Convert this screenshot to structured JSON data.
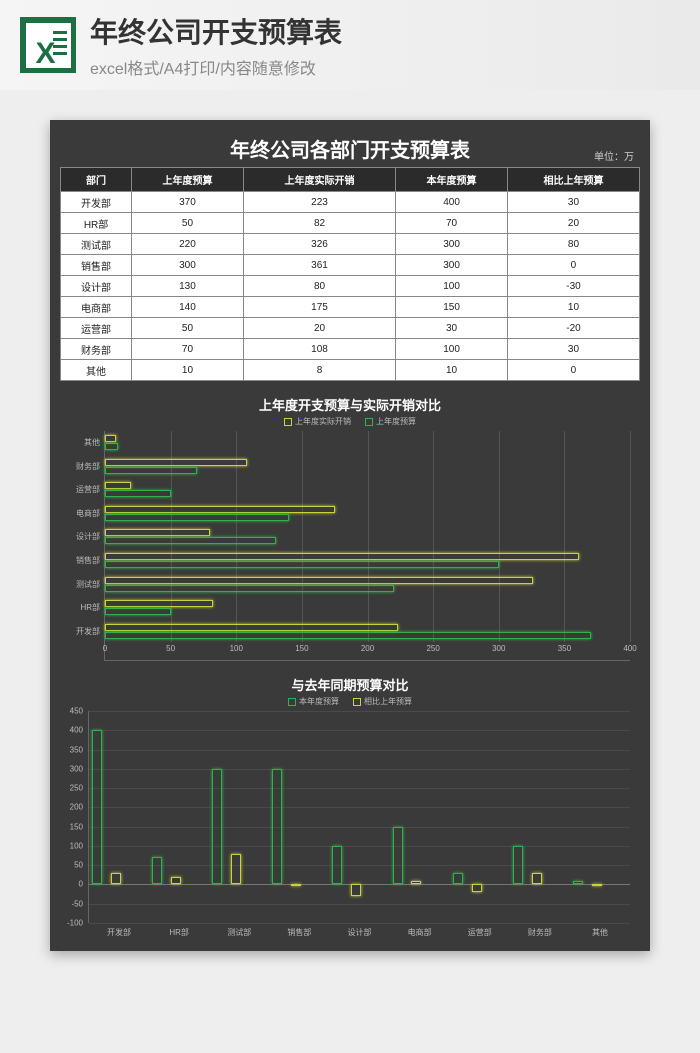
{
  "banner": {
    "icon_name": "excel-icon",
    "icon_bg": "#1d6f42",
    "title": "年终公司开支预算表",
    "subtitle": "excel格式/A4打印/内容随意修改"
  },
  "sheet": {
    "bg_color": "#3a3a3a",
    "title": "年终公司各部门开支预算表",
    "unit_label": "单位：万"
  },
  "table": {
    "columns": [
      "部门",
      "上年度预算",
      "上年度实际开销",
      "本年度预算",
      "相比上年预算"
    ],
    "rows": [
      [
        "开发部",
        370,
        223,
        400,
        30
      ],
      [
        "HR部",
        50,
        82,
        70,
        20
      ],
      [
        "测试部",
        220,
        326,
        300,
        80
      ],
      [
        "销售部",
        300,
        361,
        300,
        0
      ],
      [
        "设计部",
        130,
        80,
        100,
        -30
      ],
      [
        "电商部",
        140,
        175,
        150,
        10
      ],
      [
        "运营部",
        50,
        20,
        30,
        -20
      ],
      [
        "财务部",
        70,
        108,
        100,
        30
      ],
      [
        "其他",
        10,
        8,
        10,
        0
      ]
    ],
    "header_bg": "#2b2b2b",
    "header_color": "#ffffff",
    "cell_bg": "#ffffff",
    "cell_color": "#222222",
    "border_color": "#888888"
  },
  "chart1": {
    "type": "horizontal-bar",
    "title": "上年度开支预算与实际开销对比",
    "legend": [
      {
        "label": "上年度实际开销",
        "color": "#c9d43a"
      },
      {
        "label": "上年度预算",
        "color": "#2fb24c"
      }
    ],
    "categories": [
      "其他",
      "财务部",
      "运营部",
      "电商部",
      "设计部",
      "销售部",
      "测试部",
      "HR部",
      "开发部"
    ],
    "series": [
      {
        "name": "上年度实际开销",
        "color": "#c9d43a",
        "values": [
          8,
          108,
          20,
          175,
          80,
          361,
          326,
          82,
          223
        ]
      },
      {
        "name": "上年度预算",
        "color": "#2fb24c",
        "values": [
          10,
          70,
          50,
          140,
          130,
          300,
          220,
          50,
          370
        ]
      }
    ],
    "xlim": [
      0,
      400
    ],
    "xtick_step": 50,
    "grid_color": "#555555",
    "axis_color": "#666666",
    "label_color": "#bbbbbb",
    "label_fontsize": 8,
    "title_fontsize": 13
  },
  "chart2": {
    "type": "vertical-bar",
    "title": "与去年同期预算对比",
    "legend": [
      {
        "label": "本年度预算",
        "color": "#2fb24c"
      },
      {
        "label": "相比上年预算",
        "color": "#c9d43a"
      }
    ],
    "categories": [
      "开发部",
      "HR部",
      "测试部",
      "销售部",
      "设计部",
      "电商部",
      "运营部",
      "财务部",
      "其他"
    ],
    "series": [
      {
        "name": "本年度预算",
        "color": "#2fb24c",
        "values": [
          400,
          70,
          300,
          300,
          100,
          150,
          30,
          100,
          10
        ]
      },
      {
        "name": "相比上年预算",
        "color": "#c9d43a",
        "values": [
          30,
          20,
          80,
          0,
          -30,
          10,
          -20,
          30,
          0
        ]
      }
    ],
    "ylim": [
      -100,
      450
    ],
    "ytick_step": 50,
    "grid_color": "#4a4a4a",
    "axis_color": "#666666",
    "label_color": "#bbbbbb",
    "label_fontsize": 8,
    "title_fontsize": 13
  }
}
